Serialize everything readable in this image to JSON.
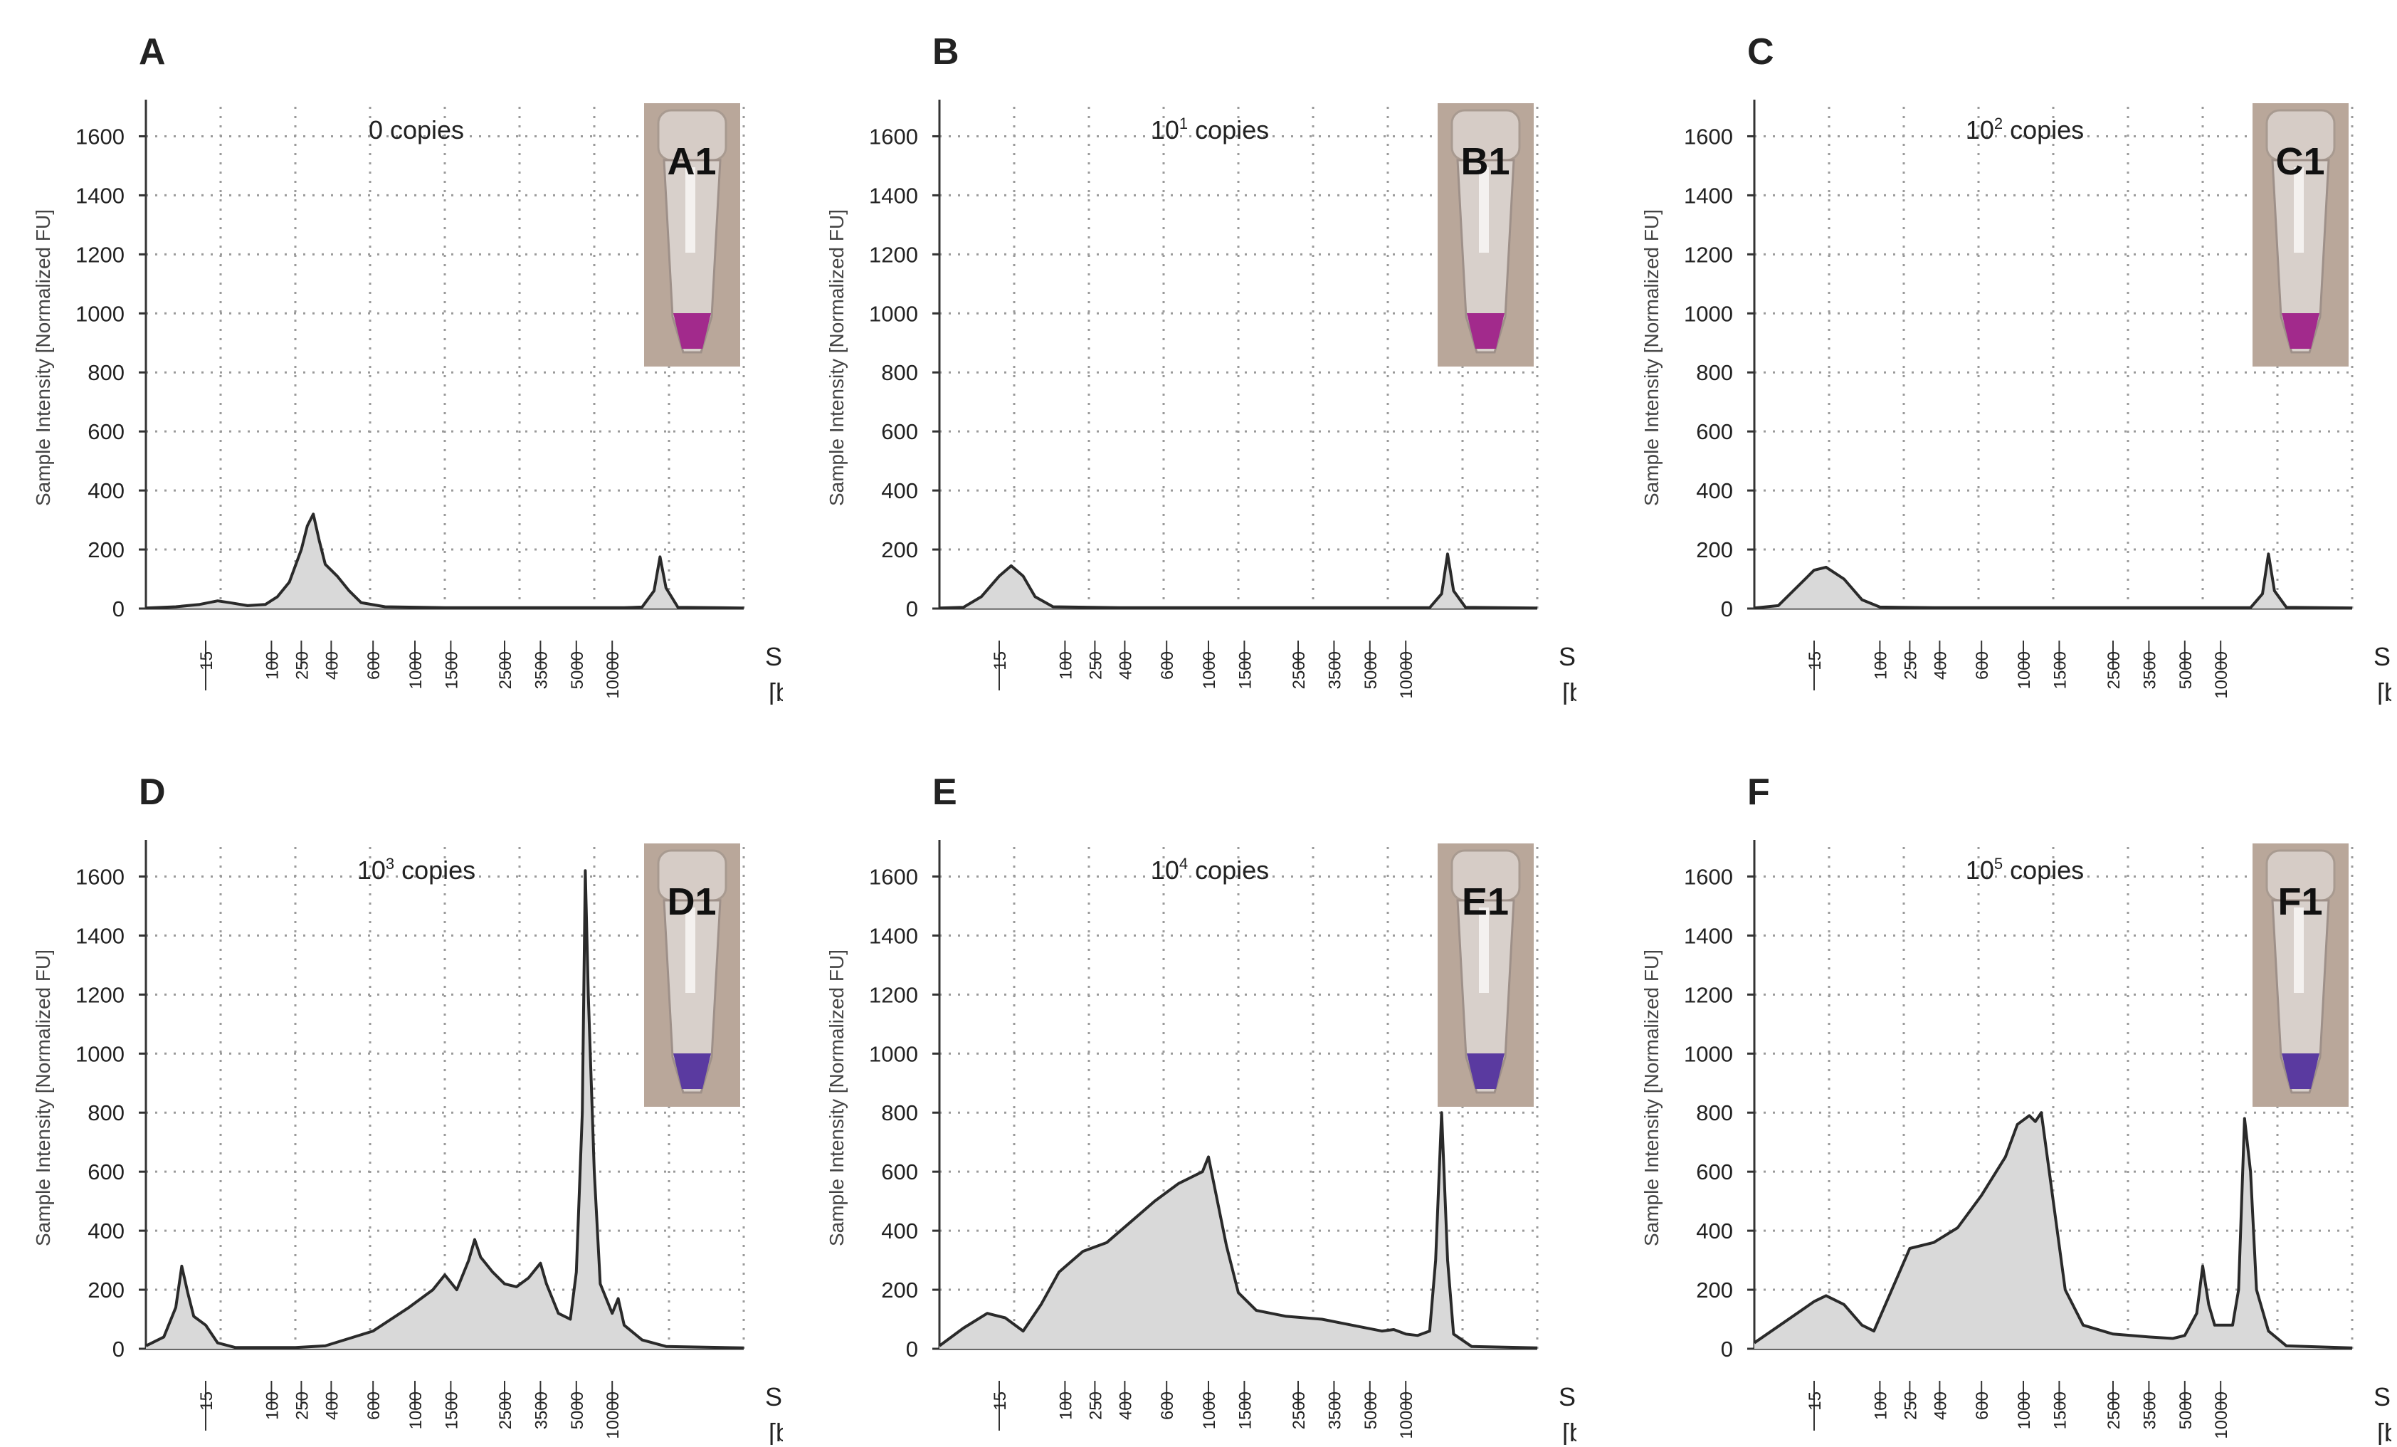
{
  "figure": {
    "ylabel": "Sample Intensity [Normalized FU]",
    "size_label": "Size",
    "size_unit": "[bp]",
    "colors": {
      "trace": "#2a2a2a",
      "fill": "#d9d9d9",
      "grid": "#9a9a9a",
      "axis": "#333333",
      "text": "#222222",
      "tube_liquid_pink": "#a22a8c",
      "tube_liquid_purple": "#5a3aa0"
    }
  },
  "chart_data": [
    {
      "type": "area",
      "panel": "A",
      "title": "0 copies",
      "tube_label": "A1",
      "liquid": "pink",
      "yticks": [
        0,
        200,
        400,
        600,
        800,
        1000,
        1200,
        1400,
        1600
      ],
      "ylim": [
        0,
        1700
      ],
      "size_ticks": [
        "15",
        "100",
        "250",
        "400",
        "600",
        "1000",
        "1500",
        "2500",
        "3500",
        "5000",
        "10000"
      ],
      "points": [
        [
          0.0,
          2
        ],
        [
          0.05,
          6
        ],
        [
          0.09,
          14
        ],
        [
          0.12,
          26
        ],
        [
          0.14,
          20
        ],
        [
          0.17,
          10
        ],
        [
          0.2,
          14
        ],
        [
          0.22,
          40
        ],
        [
          0.24,
          90
        ],
        [
          0.26,
          200
        ],
        [
          0.27,
          280
        ],
        [
          0.28,
          320
        ],
        [
          0.29,
          230
        ],
        [
          0.3,
          150
        ],
        [
          0.32,
          110
        ],
        [
          0.34,
          60
        ],
        [
          0.36,
          20
        ],
        [
          0.4,
          6
        ],
        [
          0.5,
          3
        ],
        [
          0.8,
          3
        ],
        [
          0.83,
          5
        ],
        [
          0.85,
          60
        ],
        [
          0.86,
          175
        ],
        [
          0.87,
          70
        ],
        [
          0.89,
          4
        ],
        [
          1.0,
          2
        ]
      ]
    },
    {
      "type": "area",
      "panel": "B",
      "title_base": "10",
      "title_exp": "1",
      "title_rest": " copies",
      "tube_label": "B1",
      "liquid": "pink",
      "yticks": [
        0,
        200,
        400,
        600,
        800,
        1000,
        1200,
        1400,
        1600
      ],
      "ylim": [
        0,
        1700
      ],
      "size_ticks": [
        "15",
        "100",
        "250",
        "400",
        "600",
        "1000",
        "1500",
        "2500",
        "3500",
        "5000",
        "10000"
      ],
      "points": [
        [
          0.0,
          2
        ],
        [
          0.04,
          4
        ],
        [
          0.07,
          40
        ],
        [
          0.1,
          110
        ],
        [
          0.12,
          145
        ],
        [
          0.14,
          110
        ],
        [
          0.16,
          40
        ],
        [
          0.19,
          6
        ],
        [
          0.3,
          3
        ],
        [
          0.82,
          3
        ],
        [
          0.84,
          50
        ],
        [
          0.85,
          185
        ],
        [
          0.86,
          60
        ],
        [
          0.88,
          4
        ],
        [
          1.0,
          2
        ]
      ]
    },
    {
      "type": "area",
      "panel": "C",
      "title_base": "10",
      "title_exp": "2",
      "title_rest": " copies",
      "tube_label": "C1",
      "liquid": "pink",
      "yticks": [
        0,
        200,
        400,
        600,
        800,
        1000,
        1200,
        1400,
        1600
      ],
      "ylim": [
        0,
        1700
      ],
      "size_ticks": [
        "15",
        "100",
        "250",
        "400",
        "600",
        "1000",
        "1500",
        "2500",
        "3500",
        "5000",
        "10000"
      ],
      "points": [
        [
          0.0,
          2
        ],
        [
          0.04,
          10
        ],
        [
          0.07,
          70
        ],
        [
          0.1,
          130
        ],
        [
          0.12,
          140
        ],
        [
          0.15,
          100
        ],
        [
          0.18,
          30
        ],
        [
          0.21,
          5
        ],
        [
          0.3,
          3
        ],
        [
          0.83,
          3
        ],
        [
          0.85,
          50
        ],
        [
          0.86,
          185
        ],
        [
          0.87,
          60
        ],
        [
          0.89,
          4
        ],
        [
          1.0,
          2
        ]
      ]
    },
    {
      "type": "area",
      "panel": "D",
      "title_base": "10",
      "title_exp": "3",
      "title_rest": " copies",
      "tube_label": "D1",
      "liquid": "purple",
      "yticks": [
        0,
        200,
        400,
        600,
        800,
        1000,
        1200,
        1400,
        1600
      ],
      "ylim": [
        0,
        1700
      ],
      "size_ticks": [
        "15",
        "100",
        "250",
        "400",
        "600",
        "1000",
        "1500",
        "2500",
        "3500",
        "5000",
        "10000"
      ],
      "points": [
        [
          0.0,
          10
        ],
        [
          0.03,
          40
        ],
        [
          0.05,
          140
        ],
        [
          0.06,
          280
        ],
        [
          0.07,
          190
        ],
        [
          0.08,
          110
        ],
        [
          0.1,
          80
        ],
        [
          0.12,
          20
        ],
        [
          0.15,
          4
        ],
        [
          0.25,
          4
        ],
        [
          0.3,
          10
        ],
        [
          0.38,
          60
        ],
        [
          0.44,
          140
        ],
        [
          0.48,
          200
        ],
        [
          0.5,
          250
        ],
        [
          0.52,
          200
        ],
        [
          0.54,
          300
        ],
        [
          0.55,
          370
        ],
        [
          0.56,
          310
        ],
        [
          0.58,
          260
        ],
        [
          0.6,
          220
        ],
        [
          0.62,
          210
        ],
        [
          0.64,
          240
        ],
        [
          0.66,
          290
        ],
        [
          0.67,
          220
        ],
        [
          0.69,
          120
        ],
        [
          0.71,
          100
        ],
        [
          0.72,
          260
        ],
        [
          0.73,
          800
        ],
        [
          0.735,
          1620
        ],
        [
          0.74,
          1200
        ],
        [
          0.75,
          600
        ],
        [
          0.76,
          220
        ],
        [
          0.78,
          120
        ],
        [
          0.79,
          170
        ],
        [
          0.8,
          80
        ],
        [
          0.83,
          30
        ],
        [
          0.87,
          8
        ],
        [
          1.0,
          3
        ]
      ]
    },
    {
      "type": "area",
      "panel": "E",
      "title_base": "10",
      "title_exp": "4",
      "title_rest": " copies",
      "tube_label": "E1",
      "liquid": "purple",
      "yticks": [
        0,
        200,
        400,
        600,
        800,
        1000,
        1200,
        1400,
        1600
      ],
      "ylim": [
        0,
        1700
      ],
      "size_ticks": [
        "15",
        "100",
        "250",
        "400",
        "600",
        "1000",
        "1500",
        "2500",
        "3500",
        "5000",
        "10000"
      ],
      "points": [
        [
          0.0,
          10
        ],
        [
          0.04,
          70
        ],
        [
          0.08,
          120
        ],
        [
          0.11,
          105
        ],
        [
          0.14,
          60
        ],
        [
          0.17,
          150
        ],
        [
          0.2,
          260
        ],
        [
          0.24,
          330
        ],
        [
          0.28,
          360
        ],
        [
          0.32,
          430
        ],
        [
          0.36,
          500
        ],
        [
          0.4,
          560
        ],
        [
          0.42,
          580
        ],
        [
          0.44,
          600
        ],
        [
          0.45,
          650
        ],
        [
          0.46,
          550
        ],
        [
          0.48,
          350
        ],
        [
          0.5,
          190
        ],
        [
          0.53,
          130
        ],
        [
          0.58,
          110
        ],
        [
          0.64,
          100
        ],
        [
          0.69,
          80
        ],
        [
          0.74,
          60
        ],
        [
          0.76,
          65
        ],
        [
          0.78,
          50
        ],
        [
          0.8,
          45
        ],
        [
          0.82,
          60
        ],
        [
          0.83,
          300
        ],
        [
          0.84,
          800
        ],
        [
          0.85,
          300
        ],
        [
          0.86,
          50
        ],
        [
          0.89,
          8
        ],
        [
          1.0,
          3
        ]
      ]
    },
    {
      "type": "area",
      "panel": "F",
      "title_base": "10",
      "title_exp": "5",
      "title_rest": " copies",
      "tube_label": "F1",
      "liquid": "purple",
      "yticks": [
        0,
        200,
        400,
        600,
        800,
        1000,
        1200,
        1400,
        1600
      ],
      "ylim": [
        0,
        1700
      ],
      "size_ticks": [
        "15",
        "100",
        "250",
        "400",
        "600",
        "1000",
        "1500",
        "2500",
        "3500",
        "5000",
        "10000"
      ],
      "points": [
        [
          0.0,
          20
        ],
        [
          0.05,
          90
        ],
        [
          0.1,
          160
        ],
        [
          0.12,
          180
        ],
        [
          0.15,
          150
        ],
        [
          0.18,
          80
        ],
        [
          0.2,
          60
        ],
        [
          0.23,
          200
        ],
        [
          0.26,
          340
        ],
        [
          0.3,
          360
        ],
        [
          0.34,
          410
        ],
        [
          0.38,
          520
        ],
        [
          0.42,
          650
        ],
        [
          0.44,
          760
        ],
        [
          0.46,
          790
        ],
        [
          0.47,
          770
        ],
        [
          0.48,
          800
        ],
        [
          0.5,
          500
        ],
        [
          0.52,
          200
        ],
        [
          0.55,
          80
        ],
        [
          0.6,
          50
        ],
        [
          0.66,
          40
        ],
        [
          0.7,
          35
        ],
        [
          0.72,
          45
        ],
        [
          0.74,
          120
        ],
        [
          0.75,
          280
        ],
        [
          0.76,
          150
        ],
        [
          0.77,
          80
        ],
        [
          0.8,
          80
        ],
        [
          0.81,
          200
        ],
        [
          0.82,
          780
        ],
        [
          0.83,
          600
        ],
        [
          0.84,
          200
        ],
        [
          0.86,
          60
        ],
        [
          0.89,
          10
        ],
        [
          1.0,
          3
        ]
      ]
    }
  ]
}
